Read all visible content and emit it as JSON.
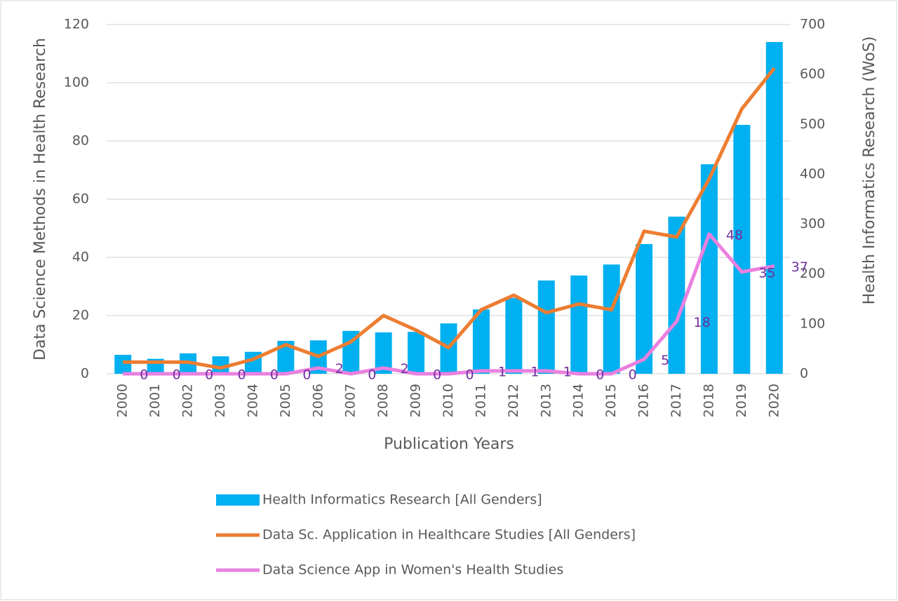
{
  "chart_data": {
    "type": "combo",
    "x_label": "Publication Years",
    "y_label": "Data Science Methods in Health Research",
    "y2_label": "Health Informatics Research (WoS)",
    "categories": [
      "2000",
      "2001",
      "2002",
      "2003",
      "2004",
      "2005",
      "2006",
      "2007",
      "2008",
      "2009",
      "2010",
      "2011",
      "2012",
      "2013",
      "2014",
      "2015",
      "2016",
      "2017",
      "2018",
      "2019",
      "2020"
    ],
    "ylim": [
      0,
      120
    ],
    "yticks": [
      0,
      20,
      40,
      60,
      80,
      100,
      120
    ],
    "y2lim": [
      0,
      700
    ],
    "y2ticks": [
      0,
      100,
      200,
      300,
      400,
      500,
      600,
      700
    ],
    "grid": true,
    "legend": "bottom",
    "series": [
      {
        "name": "Health Informatics Research [All Genders]",
        "type": "bar",
        "axis": "y2",
        "color": "#00b0f0",
        "values": [
          38,
          30,
          41,
          35,
          44,
          66,
          67,
          86,
          83,
          84,
          101,
          129,
          152,
          187,
          197,
          219,
          260,
          315,
          420,
          499,
          665
        ]
      },
      {
        "name": "Data Sc. Application in Healthcare Studies [All Genders]",
        "type": "line",
        "color": "#ed7d31",
        "values": [
          4,
          4,
          4,
          2,
          5,
          10,
          6,
          11,
          20,
          15,
          9,
          22,
          27,
          21,
          24,
          22,
          49,
          47,
          67,
          91,
          105
        ]
      },
      {
        "name": "Data Science App in Women's Health Studies",
        "type": "line",
        "color": "#ea80e0",
        "data_labels": true,
        "values": [
          0,
          0,
          0,
          0,
          0,
          0,
          2,
          0,
          2,
          0,
          0,
          1,
          1,
          1,
          0,
          0,
          5,
          18,
          48,
          35,
          37
        ]
      }
    ]
  }
}
